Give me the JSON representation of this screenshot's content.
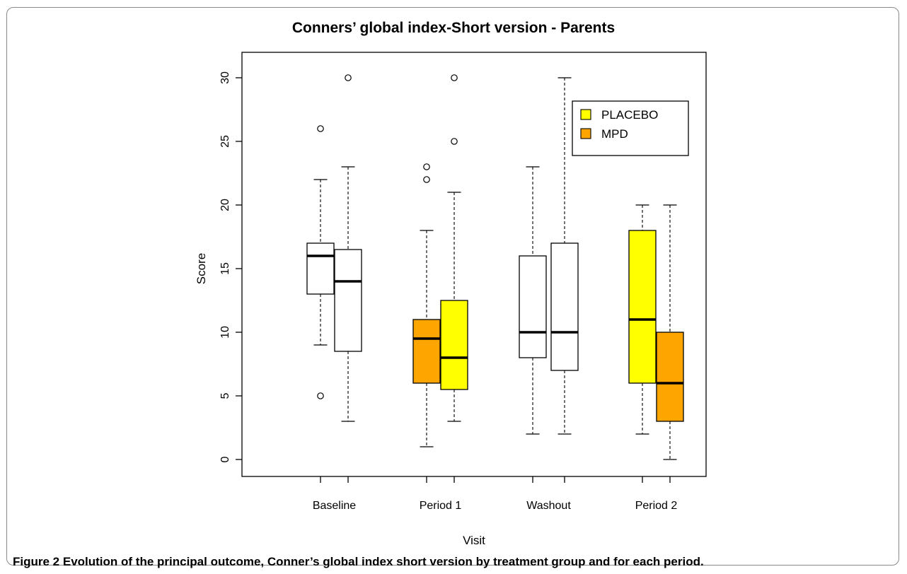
{
  "figure": {
    "label": "Figure 2",
    "caption": "Evolution of the principal outcome, Conner’s global index short version by treatment group and for each period."
  },
  "colors": {
    "placebo": "#ffff00",
    "mpd": "#ffa500",
    "none": "#ffffff",
    "line": "#000000"
  },
  "chart_data": {
    "type": "boxplot",
    "title": "Conners’ global index-Short version - Parents",
    "xlabel": "Visit",
    "ylabel": "Score",
    "ylim": [
      0,
      30
    ],
    "yticks": [
      0,
      5,
      10,
      15,
      20,
      25,
      30
    ],
    "categories": [
      "Baseline",
      "Period 1",
      "Washout",
      "Period 2"
    ],
    "legend": {
      "position": "top-right",
      "entries": [
        {
          "label": "PLACEBO",
          "color": "#ffff00"
        },
        {
          "label": "MPD",
          "color": "#ffa500"
        }
      ]
    },
    "boxes": [
      {
        "category": "Baseline",
        "group": "none",
        "fill": "#ffffff",
        "whisker_low": 9,
        "q1": 13,
        "median": 16,
        "q3": 17,
        "whisker_high": 22,
        "outliers": [
          5,
          26
        ]
      },
      {
        "category": "Baseline",
        "group": "none",
        "fill": "#ffffff",
        "whisker_low": 3,
        "q1": 8.5,
        "median": 14,
        "q3": 16.5,
        "whisker_high": 23,
        "outliers": [
          30
        ]
      },
      {
        "category": "Period 1",
        "group": "MPD",
        "fill": "#ffa500",
        "whisker_low": 1,
        "q1": 6,
        "median": 9.5,
        "q3": 11,
        "whisker_high": 18,
        "outliers": [
          22,
          23
        ]
      },
      {
        "category": "Period 1",
        "group": "PLACEBO",
        "fill": "#ffff00",
        "whisker_low": 3,
        "q1": 5.5,
        "median": 8,
        "q3": 12.5,
        "whisker_high": 21,
        "outliers": [
          25,
          30
        ]
      },
      {
        "category": "Washout",
        "group": "none",
        "fill": "#ffffff",
        "whisker_low": 2,
        "q1": 8,
        "median": 10,
        "q3": 16,
        "whisker_high": 23,
        "outliers": []
      },
      {
        "category": "Washout",
        "group": "none",
        "fill": "#ffffff",
        "whisker_low": 2,
        "q1": 7,
        "median": 10,
        "q3": 17,
        "whisker_high": 30,
        "outliers": []
      },
      {
        "category": "Period 2",
        "group": "PLACEBO",
        "fill": "#ffff00",
        "whisker_low": 2,
        "q1": 6,
        "median": 11,
        "q3": 18,
        "whisker_high": 20,
        "outliers": []
      },
      {
        "category": "Period 2",
        "group": "MPD",
        "fill": "#ffa500",
        "whisker_low": 0,
        "q1": 3,
        "median": 6,
        "q3": 10,
        "whisker_high": 20,
        "outliers": []
      }
    ]
  }
}
